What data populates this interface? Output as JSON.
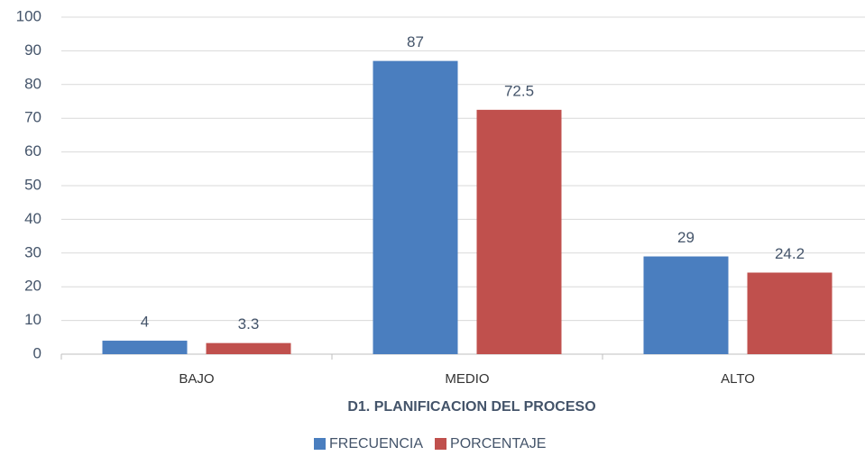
{
  "chart_data": {
    "type": "bar",
    "categories": [
      "BAJO",
      "MEDIO",
      "ALTO"
    ],
    "series": [
      {
        "name": "FRECUENCIA",
        "color": "#4a7ebf",
        "values": [
          4,
          87,
          29
        ]
      },
      {
        "name": "PORCENTAJE",
        "color": "#c0504d",
        "values": [
          3.3,
          72.5,
          24.2
        ]
      }
    ],
    "x_label": "D1. PLANIFICACION DEL PROCESO",
    "ylim": [
      0,
      100
    ],
    "yticks": [
      0,
      10,
      20,
      30,
      40,
      50,
      60,
      70,
      80,
      90,
      100
    ],
    "grid": true,
    "legend": "bottom"
  }
}
